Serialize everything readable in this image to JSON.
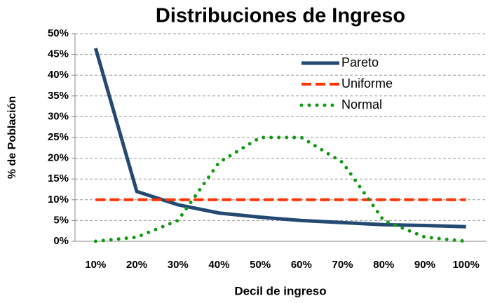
{
  "chart_data": {
    "type": "line",
    "title": "Distribuciones de Ingreso",
    "xlabel": "Decil de ingreso",
    "ylabel": "% de Población",
    "categories": [
      "10%",
      "20%",
      "30%",
      "40%",
      "50%",
      "60%",
      "70%",
      "80%",
      "90%",
      "100%"
    ],
    "series": [
      {
        "name": "Pareto",
        "color": "#254a72",
        "style": "solid",
        "values": [
          46.5,
          12,
          8.8,
          6.8,
          5.8,
          5,
          4.5,
          4,
          3.8,
          3.5
        ]
      },
      {
        "name": "Uniforme",
        "color": "#ff3300",
        "style": "dashed",
        "values": [
          10,
          10,
          10,
          10,
          10,
          10,
          10,
          10,
          10,
          10
        ]
      },
      {
        "name": "Normal",
        "color": "#119911",
        "style": "dotted",
        "values": [
          0,
          1,
          5,
          19,
          25,
          25,
          19,
          5,
          1,
          0
        ]
      }
    ],
    "ylim": [
      0,
      50
    ],
    "yticks": [
      {
        "value": 0,
        "label": "0%"
      },
      {
        "value": 5,
        "label": "5%"
      },
      {
        "value": 10,
        "label": "10%"
      },
      {
        "value": 15,
        "label": "15%"
      },
      {
        "value": 20,
        "label": "20%"
      },
      {
        "value": 25,
        "label": "25%"
      },
      {
        "value": 30,
        "label": "30%"
      },
      {
        "value": 35,
        "label": "35%"
      },
      {
        "value": 40,
        "label": "40%"
      },
      {
        "value": 45,
        "label": "45%"
      },
      {
        "value": 50,
        "label": "50%"
      }
    ],
    "grid": true,
    "legend": "upper right"
  }
}
